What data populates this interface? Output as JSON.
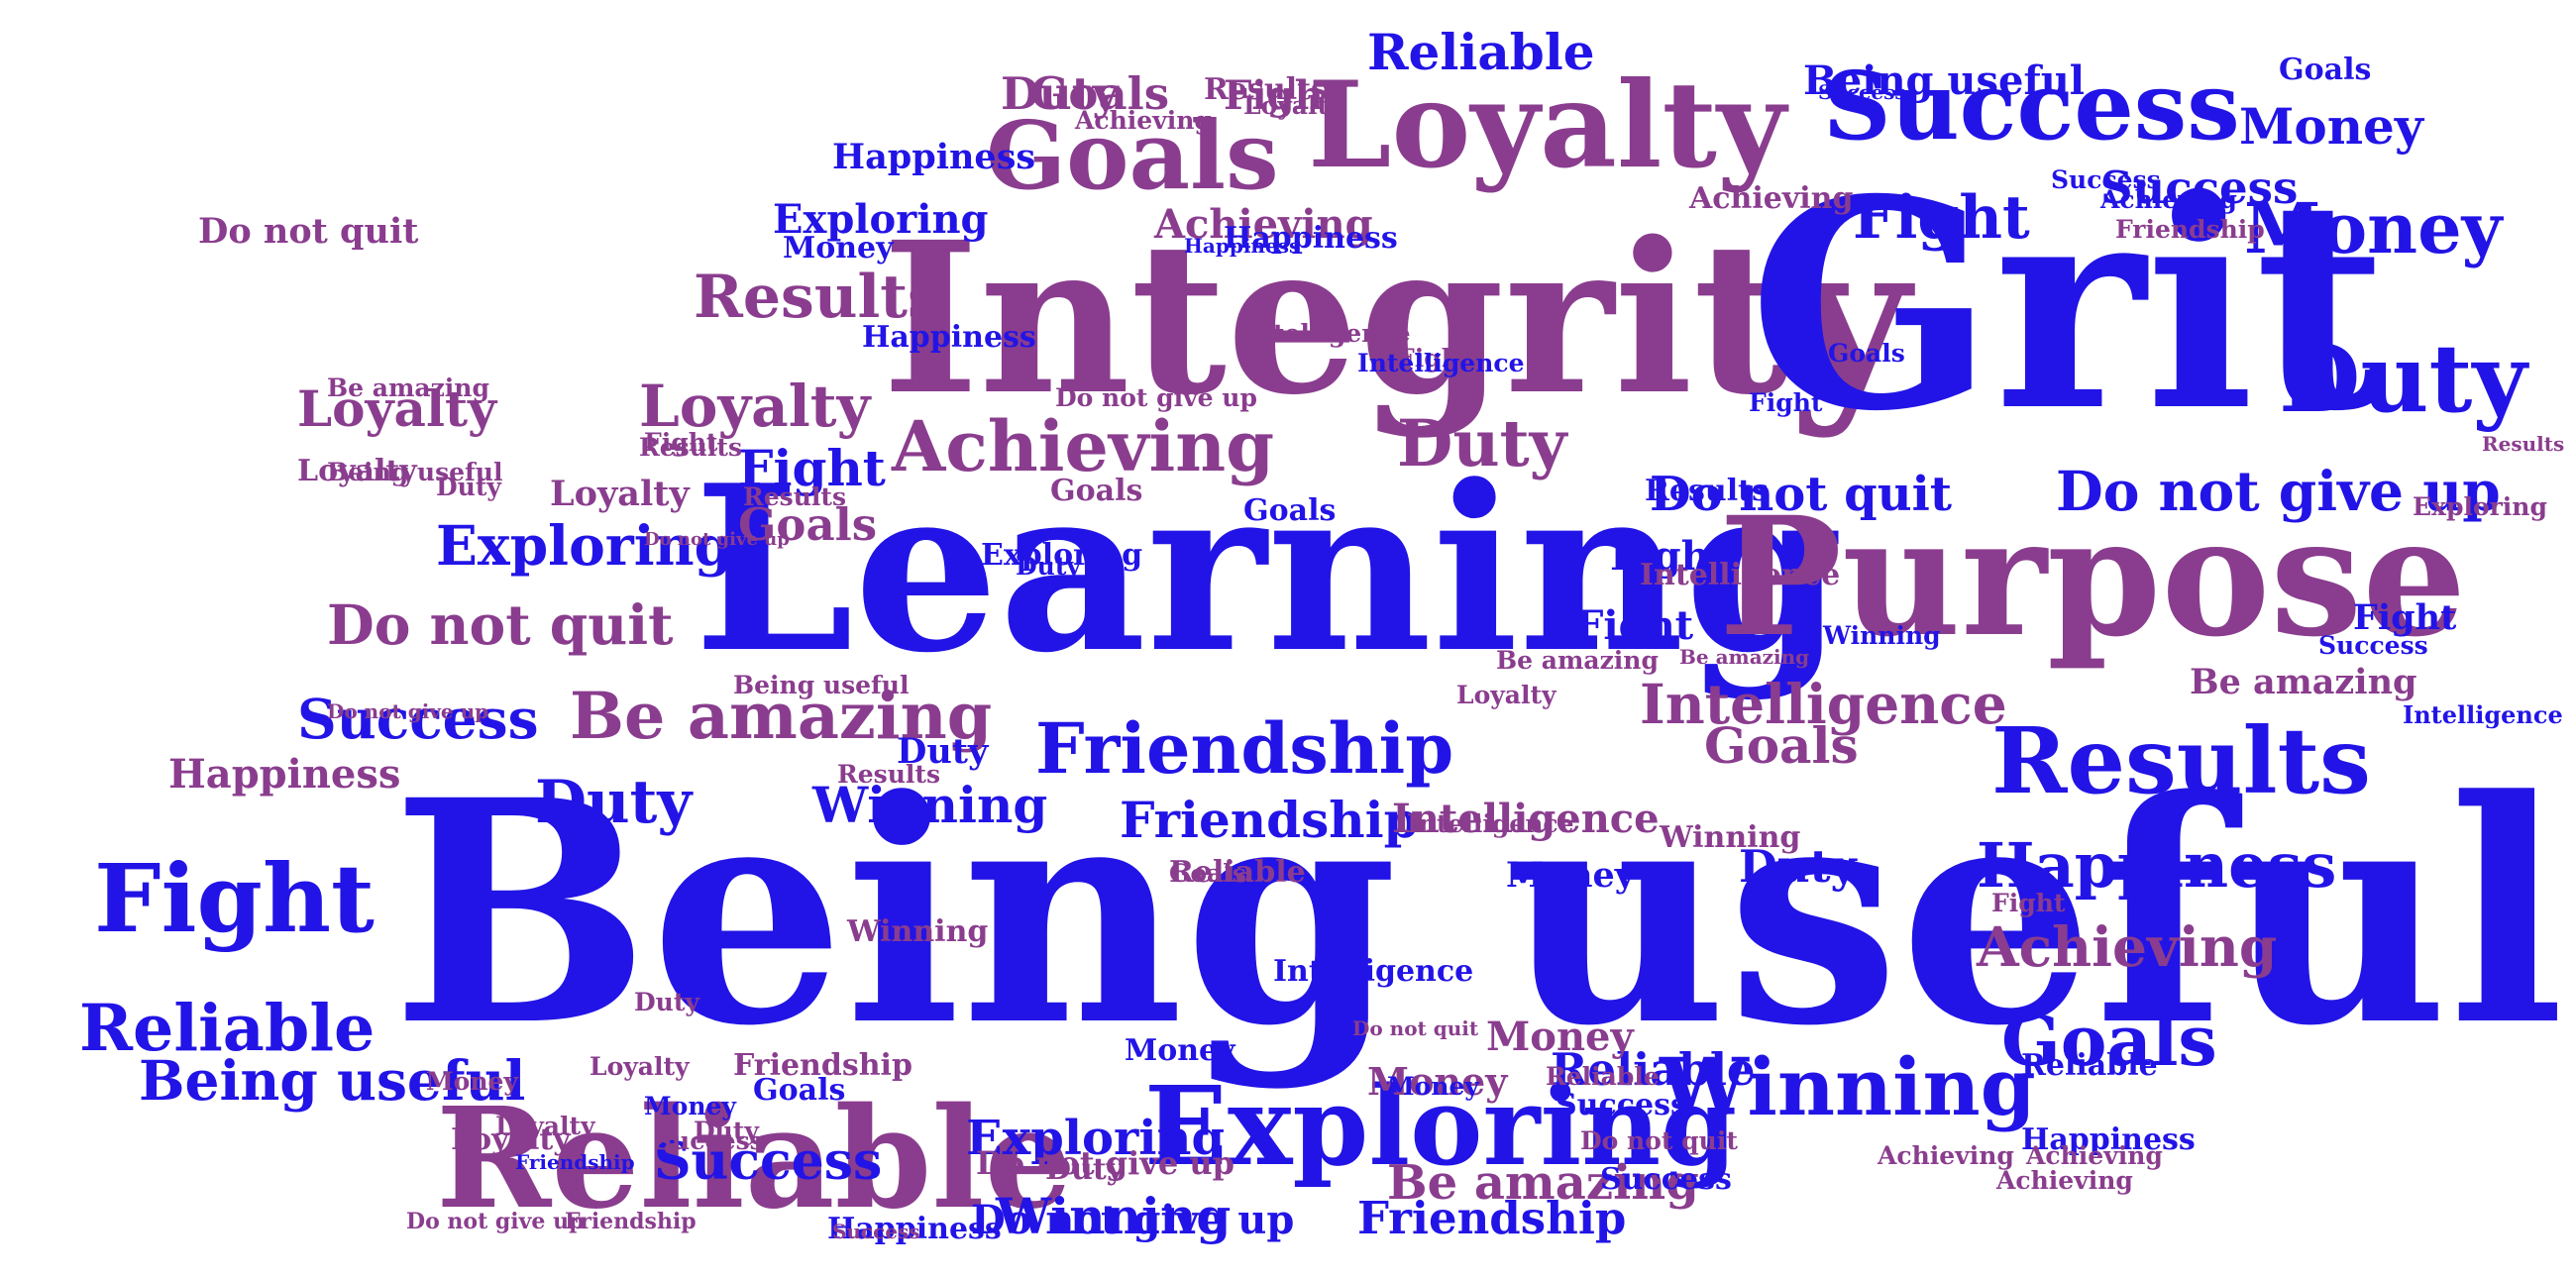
{
  "colors": {
    "blue": "#2214e6",
    "purple": "#8a3d8e",
    "background": "#ffffff"
  },
  "words": [
    {
      "text": "Being useful",
      "color": "blue"
    },
    {
      "text": "Integrity",
      "color": "purple"
    },
    {
      "text": "Grit",
      "color": "blue"
    },
    {
      "text": "Learning",
      "color": "blue"
    },
    {
      "text": "Purpose",
      "color": "purple"
    },
    {
      "text": "Reliable",
      "color": "purple"
    },
    {
      "text": "Exploring",
      "color": "blue"
    },
    {
      "text": "Loyalty",
      "color": "purple"
    },
    {
      "text": "Success",
      "color": "blue"
    },
    {
      "text": "Goals",
      "color": "purple"
    },
    {
      "text": "Duty",
      "color": "blue"
    },
    {
      "text": "Results",
      "color": "blue"
    },
    {
      "text": "Winning",
      "color": "blue"
    },
    {
      "text": "Friendship",
      "color": "blue"
    },
    {
      "text": "Fight",
      "color": "blue"
    },
    {
      "text": "Achieving",
      "color": "purple"
    },
    {
      "text": "Be amazing",
      "color": "purple"
    },
    {
      "text": "Money",
      "color": "blue"
    },
    {
      "text": "Do not quit",
      "color": "purple"
    },
    {
      "text": "Do not give up",
      "color": "blue"
    },
    {
      "text": "Happiness",
      "color": "blue"
    },
    {
      "text": "Intelligence",
      "color": "purple"
    },
    {
      "text": "Reliable",
      "color": "blue"
    },
    {
      "text": "Goals",
      "color": "blue"
    },
    {
      "text": "Results",
      "color": "purple"
    },
    {
      "text": "Loyalty",
      "color": "purple"
    },
    {
      "text": "Exploring",
      "color": "blue"
    },
    {
      "text": "Success",
      "color": "blue"
    },
    {
      "text": "Duty",
      "color": "purple"
    },
    {
      "text": "Achieving",
      "color": "purple"
    },
    {
      "text": "Fight",
      "color": "blue"
    },
    {
      "text": "Friendship",
      "color": "blue"
    },
    {
      "text": "Fight",
      "color": "purple"
    },
    {
      "text": "Money",
      "color": "blue"
    },
    {
      "text": "Do not quit",
      "color": "blue"
    },
    {
      "text": "Do not give up",
      "color": "blue"
    },
    {
      "text": "Results",
      "color": "purple"
    },
    {
      "text": "Reliable",
      "color": "blue"
    },
    {
      "text": "Goals",
      "color": "purple"
    },
    {
      "text": "Duty",
      "color": "blue"
    },
    {
      "text": "Happiness",
      "color": "blue"
    },
    {
      "text": "Achieving",
      "color": "purple"
    },
    {
      "text": "Intelligence",
      "color": "purple"
    },
    {
      "text": "Be amazing",
      "color": "purple"
    },
    {
      "text": "Winning",
      "color": "blue"
    },
    {
      "text": "Success",
      "color": "blue"
    },
    {
      "text": "Duty",
      "color": "blue"
    },
    {
      "text": "Exploring",
      "color": "blue"
    },
    {
      "text": "Being useful",
      "color": "blue"
    },
    {
      "text": "Money",
      "color": "blue"
    },
    {
      "text": "Do not give up",
      "color": "purple"
    },
    {
      "text": "Loyalty",
      "color": "purple"
    },
    {
      "text": "Friendship",
      "color": "blue"
    },
    {
      "text": "Goals",
      "color": "purple"
    },
    {
      "text": "Fight",
      "color": "blue"
    },
    {
      "text": "Loyalty",
      "color": "purple"
    },
    {
      "text": "Exploring",
      "color": "blue"
    },
    {
      "text": "Do not quit",
      "color": "purple"
    },
    {
      "text": "Success",
      "color": "blue"
    },
    {
      "text": "Happiness",
      "color": "purple"
    },
    {
      "text": "Fight",
      "color": "blue"
    },
    {
      "text": "Reliable",
      "color": "blue"
    },
    {
      "text": "Being useful",
      "color": "blue"
    },
    {
      "text": "Success",
      "color": "blue"
    },
    {
      "text": "Loyalty",
      "color": "purple"
    },
    {
      "text": "Goals",
      "color": "purple"
    },
    {
      "text": "Duty",
      "color": "purple"
    },
    {
      "text": "Winning",
      "color": "blue"
    },
    {
      "text": "Intelligence",
      "color": "purple"
    },
    {
      "text": "Money",
      "color": "purple"
    },
    {
      "text": "Happiness",
      "color": "blue"
    },
    {
      "text": "Do not give up",
      "color": "purple"
    },
    {
      "text": "Duty",
      "color": "blue"
    },
    {
      "text": "Fight",
      "color": "blue"
    },
    {
      "text": "Results",
      "color": "purple"
    },
    {
      "text": "Money",
      "color": "purple"
    },
    {
      "text": "Results",
      "color": "blue"
    },
    {
      "text": "Goals",
      "color": "blue"
    },
    {
      "text": "Success",
      "color": "blue"
    },
    {
      "text": "Happiness",
      "color": "blue"
    },
    {
      "text": "Winning",
      "color": "purple"
    },
    {
      "text": "Be amazing",
      "color": "purple"
    },
    {
      "text": "Fight",
      "color": "blue"
    },
    {
      "text": "Goals",
      "color": "purple"
    },
    {
      "text": "Achieving",
      "color": "purple"
    },
    {
      "text": "Friendship",
      "color": "purple"
    },
    {
      "text": "Duty",
      "color": "purple"
    },
    {
      "text": "Loyalty",
      "color": "purple"
    },
    {
      "text": "Exploring",
      "color": "blue"
    },
    {
      "text": "Money",
      "color": "blue"
    },
    {
      "text": "Success",
      "color": "blue"
    },
    {
      "text": "Fight",
      "color": "blue"
    },
    {
      "text": "Intelligence",
      "color": "blue"
    },
    {
      "text": "Reliable",
      "color": "purple"
    },
    {
      "text": "Do not quit",
      "color": "purple"
    },
    {
      "text": "Achieving",
      "color": "blue"
    },
    {
      "text": "Money",
      "color": "blue"
    },
    {
      "text": "Reliable",
      "color": "blue"
    },
    {
      "text": "Happiness",
      "color": "blue"
    },
    {
      "text": "Fight",
      "color": "purple"
    },
    {
      "text": "Goals",
      "color": "blue"
    },
    {
      "text": "Be amazing",
      "color": "purple"
    },
    {
      "text": "Success",
      "color": "blue"
    },
    {
      "text": "Results",
      "color": "purple"
    },
    {
      "text": "Intelligence",
      "color": "blue"
    },
    {
      "text": "Loyalty",
      "color": "purple"
    },
    {
      "text": "Exploring",
      "color": "purple"
    },
    {
      "text": "Being useful",
      "color": "purple"
    },
    {
      "text": "Goals",
      "color": "blue"
    },
    {
      "text": "Money",
      "color": "purple"
    },
    {
      "text": "Winning",
      "color": "purple"
    },
    {
      "text": "Happiness",
      "color": "blue"
    },
    {
      "text": "Intelligence",
      "color": "purple"
    },
    {
      "text": "Do not give up",
      "color": "purple"
    },
    {
      "text": "Success",
      "color": "purple"
    },
    {
      "text": "Loyalty",
      "color": "purple"
    },
    {
      "text": "Friendship",
      "color": "blue"
    },
    {
      "text": "Reliable",
      "color": "purple"
    },
    {
      "text": "Duty",
      "color": "blue"
    },
    {
      "text": "Results",
      "color": "purple"
    },
    {
      "text": "Money",
      "color": "blue"
    },
    {
      "text": "Friendship",
      "color": "purple"
    },
    {
      "text": "Goals",
      "color": "purple"
    },
    {
      "text": "Duty",
      "color": "purple"
    },
    {
      "text": "Loyalty",
      "color": "purple"
    },
    {
      "text": "Achieving",
      "color": "purple"
    },
    {
      "text": "Fight",
      "color": "purple"
    },
    {
      "text": "Being useful",
      "color": "purple"
    },
    {
      "text": "Happiness",
      "color": "blue"
    },
    {
      "text": "Do not give up",
      "color": "purple"
    },
    {
      "text": "Friendship",
      "color": "purple"
    },
    {
      "text": "Do not give up",
      "color": "purple"
    },
    {
      "text": "Loyalty",
      "color": "purple"
    },
    {
      "text": "Achieving",
      "color": "purple"
    },
    {
      "text": "Success",
      "color": "purple"
    },
    {
      "text": "Duty",
      "color": "purple"
    },
    {
      "text": "Be amazing",
      "color": "purple"
    },
    {
      "text": "Success",
      "color": "blue"
    },
    {
      "text": "Achieving",
      "color": "purple"
    },
    {
      "text": "Money",
      "color": "blue"
    },
    {
      "text": "Goals",
      "color": "blue"
    },
    {
      "text": "Intelligence",
      "color": "blue"
    },
    {
      "text": "Results",
      "color": "purple"
    },
    {
      "text": "Fight",
      "color": "purple"
    },
    {
      "text": "Duty",
      "color": "purple"
    },
    {
      "text": "Winning",
      "color": "blue"
    },
    {
      "text": "Be amazing",
      "color": "purple"
    },
    {
      "text": "Intelligence",
      "color": "purple"
    },
    {
      "text": "Achieving",
      "color": "purple"
    },
    {
      "text": "Do not quit",
      "color": "purple"
    }
  ]
}
